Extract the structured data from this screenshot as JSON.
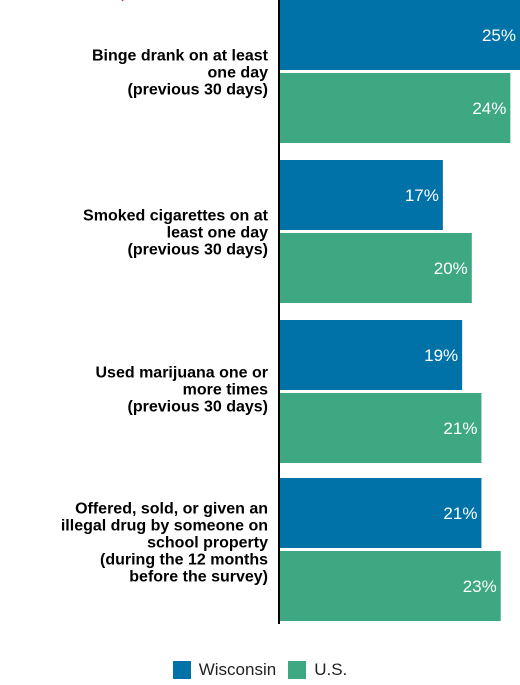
{
  "chart_data": {
    "type": "bar",
    "orientation": "horizontal",
    "categories": [
      "Binge drank on at least one day (previous 30 days)",
      "Smoked cigarettes on at least one day (previous 30 days)",
      "Used marijuana one or more times (previous 30 days)",
      "Offered, sold, or given an illegal drug by someone on school property (during the 12 months before the survey)"
    ],
    "category_label_lines": [
      [
        "Binge drank on at least",
        "one day",
        "(previous 30 days)"
      ],
      [
        "Smoked cigarettes on at",
        "least one day",
        "(previous 30 days)"
      ],
      [
        "Used marijuana one or",
        "more times",
        "(previous 30 days)"
      ],
      [
        "Offered, sold, or given an",
        "illegal drug by someone on",
        "school property",
        "(during the 12 months",
        "before the survey)"
      ]
    ],
    "series": [
      {
        "name": "Wisconsin",
        "color": "#0072A8",
        "values": [
          25,
          17,
          19,
          21
        ],
        "labels": [
          "25%",
          "17%",
          "19%",
          "21%"
        ]
      },
      {
        "name": "U.S.",
        "color": "#3DA882",
        "values": [
          24,
          20,
          21,
          23
        ],
        "labels": [
          "24%",
          "20%",
          "21%",
          "23%"
        ]
      }
    ],
    "xlim": [
      0,
      25
    ],
    "grid": false,
    "legend": "bottom-center"
  },
  "colors": {
    "accent_mark": "#c0392b",
    "axis": "#000000"
  }
}
